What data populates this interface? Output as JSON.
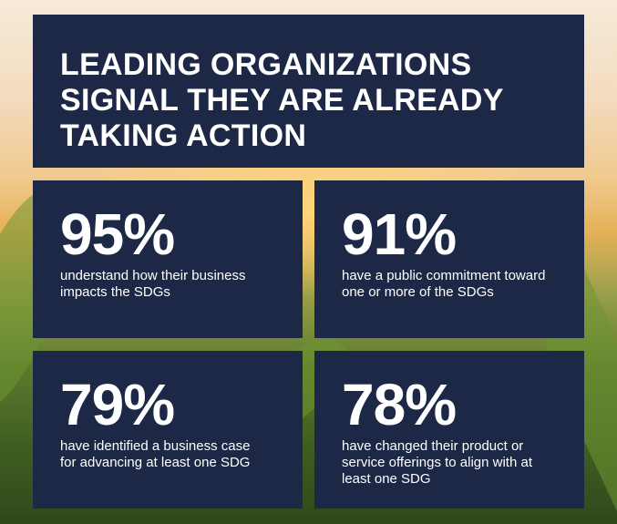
{
  "header": {
    "title": "LEADING ORGANIZATIONS SIGNAL THEY ARE ALREADY TAKING ACTION"
  },
  "stats": [
    {
      "value": "95%",
      "description": "understand how their business impacts the SDGs"
    },
    {
      "value": "91%",
      "description": "have a public commitment toward one or more of the SDGs"
    },
    {
      "value": "79%",
      "description": "have identified a business case for advancing at least one SDG"
    },
    {
      "value": "78%",
      "description": "have changed their product or service offerings to align with at least one SDG"
    }
  ]
}
